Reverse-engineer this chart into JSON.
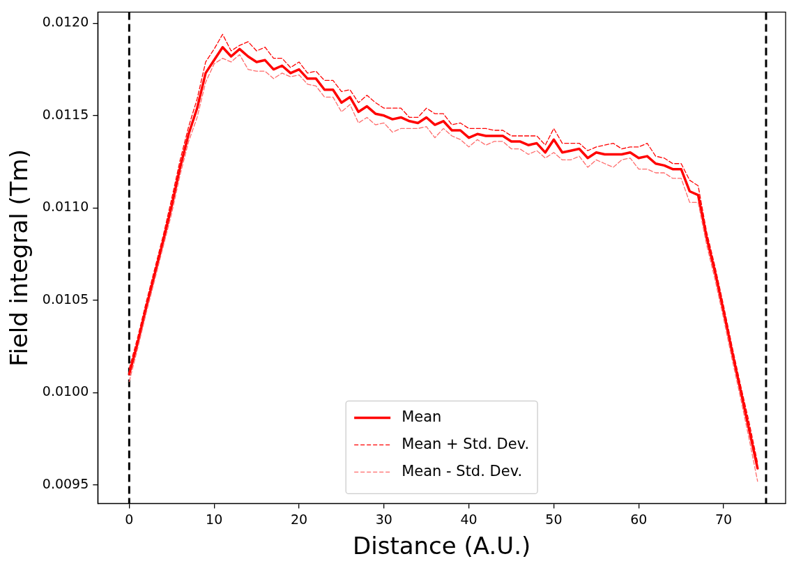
{
  "chart_data": {
    "type": "line",
    "xlabel": "Distance (A.U.)",
    "ylabel": "Field integral (Tm)",
    "x": [
      0,
      1,
      2,
      3,
      4,
      5,
      6,
      7,
      8,
      9,
      10,
      11,
      12,
      13,
      14,
      15,
      16,
      17,
      18,
      19,
      20,
      21,
      22,
      23,
      24,
      25,
      26,
      27,
      28,
      29,
      30,
      31,
      32,
      33,
      34,
      35,
      36,
      37,
      38,
      39,
      40,
      41,
      42,
      43,
      44,
      45,
      46,
      47,
      48,
      49,
      50,
      51,
      52,
      53,
      54,
      55,
      56,
      57,
      58,
      59,
      60,
      61,
      62,
      63,
      64,
      65,
      66,
      67,
      68,
      69,
      70,
      71,
      72,
      73,
      74
    ],
    "series": [
      {
        "name": "Mean",
        "color": "#ff0000",
        "line_style": "solid",
        "values": [
          0.0101,
          0.01027,
          0.01046,
          0.01064,
          0.01082,
          0.01101,
          0.01122,
          0.0114,
          0.01154,
          0.01173,
          0.0118,
          0.01187,
          0.01182,
          0.01186,
          0.01182,
          0.01179,
          0.0118,
          0.01175,
          0.01177,
          0.01173,
          0.01175,
          0.0117,
          0.0117,
          0.01164,
          0.01164,
          0.01157,
          0.0116,
          0.01152,
          0.01155,
          0.01151,
          0.0115,
          0.01148,
          0.01149,
          0.01147,
          0.01146,
          0.01149,
          0.01145,
          0.01147,
          0.01142,
          0.01142,
          0.01138,
          0.0114,
          0.01139,
          0.01139,
          0.01139,
          0.01136,
          0.01136,
          0.01134,
          0.01135,
          0.0113,
          0.01137,
          0.0113,
          0.01131,
          0.01132,
          0.01127,
          0.0113,
          0.01129,
          0.01129,
          0.01129,
          0.0113,
          0.01127,
          0.01128,
          0.01124,
          0.01123,
          0.01121,
          0.01121,
          0.01109,
          0.01107,
          0.01084,
          0.01065,
          0.01044,
          0.01022,
          0.01001,
          0.0098,
          0.00959
        ]
      },
      {
        "name": "Mean + Std. Dev.",
        "color": "#ff0000",
        "line_style": "dashed",
        "values": [
          0.01013,
          0.0103,
          0.01049,
          0.01067,
          0.01085,
          0.01105,
          0.01126,
          0.01144,
          0.01159,
          0.01179,
          0.01186,
          0.01194,
          0.01185,
          0.01188,
          0.0119,
          0.01185,
          0.01187,
          0.01181,
          0.01181,
          0.01176,
          0.01179,
          0.01173,
          0.01174,
          0.01169,
          0.01169,
          0.01163,
          0.01164,
          0.01157,
          0.01161,
          0.01157,
          0.01154,
          0.01154,
          0.01154,
          0.01149,
          0.01149,
          0.01154,
          0.01151,
          0.01151,
          0.01145,
          0.01146,
          0.01143,
          0.01143,
          0.01143,
          0.01142,
          0.01142,
          0.01139,
          0.01139,
          0.01139,
          0.01139,
          0.01134,
          0.01143,
          0.01135,
          0.01135,
          0.01135,
          0.01131,
          0.01133,
          0.01134,
          0.01135,
          0.01132,
          0.01133,
          0.01133,
          0.01135,
          0.01128,
          0.01127,
          0.01124,
          0.01124,
          0.01115,
          0.01112,
          0.01087,
          0.01068,
          0.01047,
          0.01025,
          0.01004,
          0.00984,
          0.00962
        ]
      },
      {
        "name": "Mean - Std. Dev.",
        "color": "#ff6a6a",
        "line_style": "dashed",
        "values": [
          0.01006,
          0.01024,
          0.01043,
          0.01061,
          0.01079,
          0.01097,
          0.01118,
          0.01136,
          0.01149,
          0.01168,
          0.01178,
          0.01181,
          0.01179,
          0.01183,
          0.01175,
          0.01174,
          0.01174,
          0.0117,
          0.01173,
          0.01171,
          0.01172,
          0.01167,
          0.01166,
          0.0116,
          0.0116,
          0.01152,
          0.01156,
          0.01146,
          0.01149,
          0.01145,
          0.01146,
          0.01141,
          0.01143,
          0.01143,
          0.01143,
          0.01144,
          0.01138,
          0.01143,
          0.01139,
          0.01137,
          0.01133,
          0.01137,
          0.01134,
          0.01136,
          0.01136,
          0.01132,
          0.01132,
          0.01129,
          0.01131,
          0.01127,
          0.0113,
          0.01126,
          0.01126,
          0.01128,
          0.01122,
          0.01126,
          0.01124,
          0.01122,
          0.01126,
          0.01127,
          0.01121,
          0.01121,
          0.01119,
          0.01119,
          0.01116,
          0.01116,
          0.01103,
          0.01103,
          0.0108,
          0.01061,
          0.0104,
          0.01018,
          0.00997,
          0.00975,
          0.00952
        ]
      }
    ],
    "xlim": [
      -3.7,
      77.3
    ],
    "xticks": [
      0,
      10,
      20,
      30,
      40,
      50,
      60,
      70
    ],
    "ylim": [
      0.0094,
      0.01206
    ],
    "yticks": [
      {
        "value": 0.0095,
        "label": "0.0095"
      },
      {
        "value": 0.01,
        "label": "0.0100"
      },
      {
        "value": 0.0105,
        "label": "0.0105"
      },
      {
        "value": 0.011,
        "label": "0.0110"
      },
      {
        "value": 0.0115,
        "label": "0.0115"
      },
      {
        "value": 0.012,
        "label": "0.0120"
      }
    ],
    "ref_lines": [
      {
        "axis": "x",
        "value": 0,
        "color": "#000000",
        "line_style": "dashed"
      },
      {
        "axis": "x",
        "value": 75,
        "color": "#000000",
        "line_style": "dashed"
      }
    ],
    "grid": false,
    "legend": "bottom",
    "marker": "none"
  }
}
